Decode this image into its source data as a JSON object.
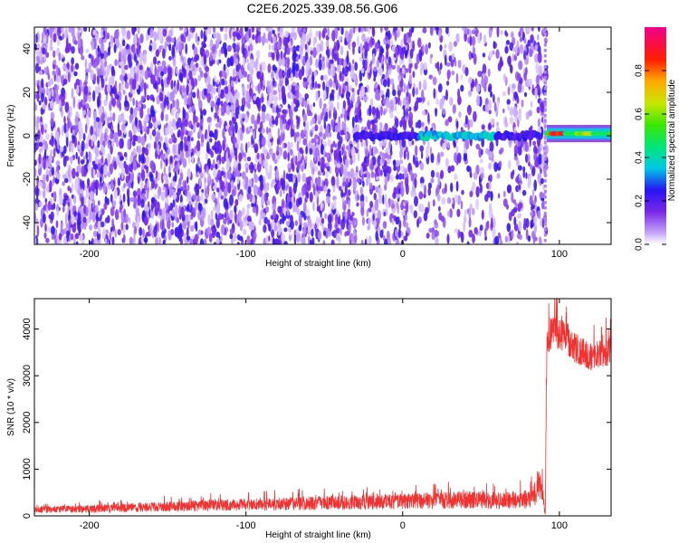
{
  "figure": {
    "title": "C2E6.2025.339.08.56.G06"
  },
  "chart_data": [
    {
      "type": "heatmap",
      "title": "C2E6.2025.339.08.56.G06",
      "xlabel": "Height of straight line (km)",
      "ylabel": "Frequency (Hz)",
      "xlim": [
        -235,
        133
      ],
      "ylim": [
        -50,
        50
      ],
      "xticks": [
        -200,
        -100,
        0,
        100
      ],
      "yticks": [
        -40,
        -20,
        0,
        20,
        40
      ],
      "colorbar": {
        "label": "Normalized spectral amplitude",
        "range": [
          0,
          1
        ],
        "ticks": [
          0.0,
          0.2,
          0.4,
          0.6,
          0.8
        ]
      },
      "features": [
        {
          "name": "noise",
          "x_range": [
            -235,
            92
          ],
          "frequency": "broadband",
          "amplitude": 0.1
        },
        {
          "name": "carrier",
          "x_range": [
            -30,
            88
          ],
          "frequency": 0,
          "amplitude": 0.3
        },
        {
          "name": "carrier",
          "x_range": [
            92,
            133
          ],
          "frequency": 1,
          "amplitude": 0.85
        }
      ]
    },
    {
      "type": "line",
      "xlabel": "Height of straight line (km)",
      "ylabel": "SNR (10 * v/v)",
      "xlim": [
        -235,
        133
      ],
      "ylim": [
        0,
        4650
      ],
      "xticks": [
        -200,
        -100,
        0,
        100
      ],
      "yticks": [
        0,
        1000,
        2000,
        3000,
        4000
      ],
      "color": "#ee3333",
      "series": [
        {
          "x": [
            -235,
            -200,
            -150,
            -100,
            -50,
            0,
            20,
            40,
            60,
            80,
            85,
            88,
            90,
            91,
            92,
            95,
            100,
            105,
            110,
            115,
            120,
            125,
            130,
            133
          ],
          "y": [
            130,
            150,
            200,
            240,
            280,
            310,
            330,
            340,
            330,
            360,
            520,
            820,
            300,
            50,
            3750,
            3950,
            3900,
            3800,
            3600,
            3500,
            3400,
            3450,
            3500,
            3550
          ]
        }
      ]
    }
  ]
}
